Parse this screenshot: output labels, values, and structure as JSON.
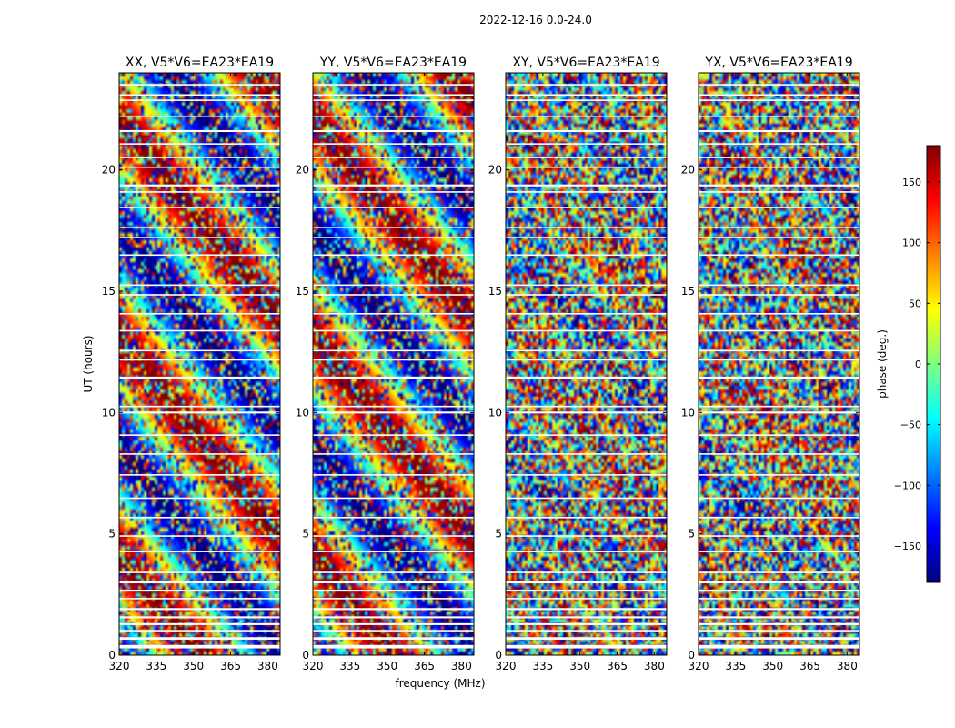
{
  "figure": {
    "suptitle": "2022-12-16 0.0-24.0"
  },
  "chart_data": {
    "type": "heatmap",
    "panels": [
      {
        "title": "XX, V5*V6=EA23*EA19",
        "pol": "XX"
      },
      {
        "title": "YY, V5*V6=EA23*EA19",
        "pol": "YY"
      },
      {
        "title": "XY, V5*V6=EA23*EA19",
        "pol": "XY"
      },
      {
        "title": "YX, V5*V6=EA23*EA19",
        "pol": "YX"
      }
    ],
    "xlabel": "frequency (MHz)",
    "ylabel": "UT (hours)",
    "xlim": [
      320,
      385
    ],
    "ylim": [
      0,
      24
    ],
    "xticks": [
      320,
      335,
      350,
      365,
      380
    ],
    "yticks": [
      0,
      5,
      10,
      15,
      20
    ],
    "colorbar": {
      "label": "phase (deg.)",
      "range": [
        -180,
        180
      ],
      "ticks": [
        150,
        100,
        50,
        0,
        -50,
        -100,
        -150
      ],
      "tick_labels": [
        "150",
        "100",
        "50",
        "0",
        "−50",
        "−100",
        "−150"
      ],
      "colormap": "jet"
    },
    "flagged_ut_bands": [
      [
        0.28,
        0.42
      ],
      [
        0.64,
        0.74
      ],
      [
        0.98,
        1.04
      ],
      [
        1.24,
        1.32
      ],
      [
        1.52,
        1.6
      ],
      [
        1.86,
        1.94
      ],
      [
        2.3,
        2.36
      ],
      [
        2.62,
        2.7
      ],
      [
        2.96,
        3.06
      ],
      [
        3.38,
        3.44
      ],
      [
        4.24,
        4.3
      ],
      [
        4.88,
        4.94
      ],
      [
        5.64,
        5.7
      ],
      [
        6.44,
        6.5
      ],
      [
        7.4,
        7.46
      ],
      [
        8.26,
        8.32
      ],
      [
        9.04,
        9.1
      ],
      [
        9.96,
        10.04
      ],
      [
        10.22,
        10.28
      ],
      [
        11.4,
        11.48
      ],
      [
        12.14,
        12.2
      ],
      [
        12.52,
        12.58
      ],
      [
        13.34,
        13.4
      ],
      [
        14.04,
        14.1
      ],
      [
        14.82,
        14.88
      ],
      [
        15.22,
        15.28
      ],
      [
        16.46,
        16.52
      ],
      [
        17.18,
        17.24
      ],
      [
        17.6,
        17.66
      ],
      [
        18.42,
        18.48
      ],
      [
        19.06,
        19.12
      ],
      [
        19.32,
        19.4
      ],
      [
        20.08,
        20.14
      ],
      [
        20.48,
        20.54
      ],
      [
        21.04,
        21.1
      ],
      [
        21.56,
        21.64
      ],
      [
        22.18,
        22.24
      ],
      [
        22.84,
        22.9
      ],
      [
        23.06,
        23.12
      ],
      [
        23.48,
        23.54
      ]
    ]
  }
}
